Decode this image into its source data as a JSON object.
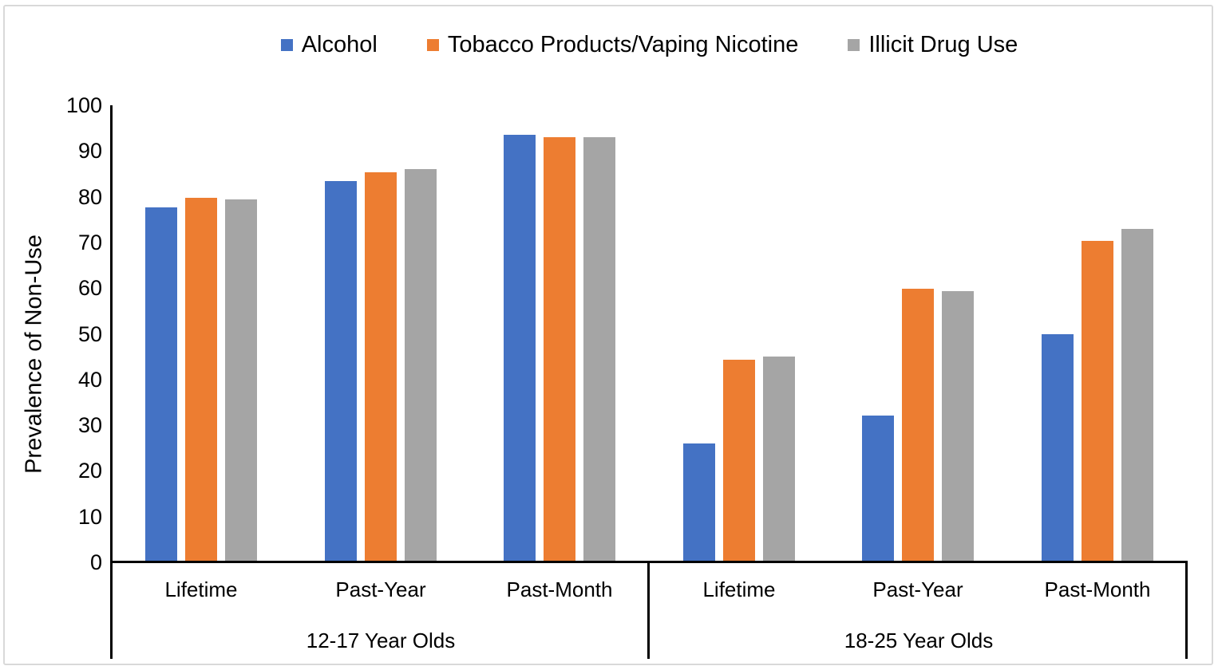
{
  "chart_data": {
    "type": "bar",
    "title": "",
    "xlabel": "",
    "ylabel": "Prevalence of Non-Use",
    "ylim": [
      0,
      100
    ],
    "yticks": [
      0,
      10,
      20,
      30,
      40,
      50,
      60,
      70,
      80,
      90,
      100
    ],
    "grid": false,
    "legend_position": "top-center",
    "axis_color": "#000000",
    "border_color": "#d9d9d9",
    "groups": [
      {
        "label": "12-17 Year Olds",
        "slug": "12-17",
        "categories": [
          "Lifetime",
          "Past-Year",
          "Past-Month"
        ]
      },
      {
        "label": "18-25 Year Olds",
        "slug": "18-25",
        "categories": [
          "Lifetime",
          "Past-Year",
          "Past-Month"
        ]
      }
    ],
    "series": [
      {
        "name": "Alcohol",
        "slug": "alcohol",
        "color": "#4472C4",
        "values": [
          77.5,
          83.3,
          93.4,
          25.8,
          31.9,
          49.8
        ]
      },
      {
        "name": "Tobacco Products/Vaping Nicotine",
        "slug": "tobacco-vaping",
        "color": "#ED7D31",
        "values": [
          79.6,
          85.1,
          92.8,
          44.2,
          59.6,
          70.2
        ]
      },
      {
        "name": "Illicit Drug Use",
        "slug": "illicit-drug",
        "color": "#A5A5A5",
        "values": [
          79.2,
          85.9,
          92.9,
          44.9,
          59.1,
          72.8
        ]
      }
    ]
  }
}
